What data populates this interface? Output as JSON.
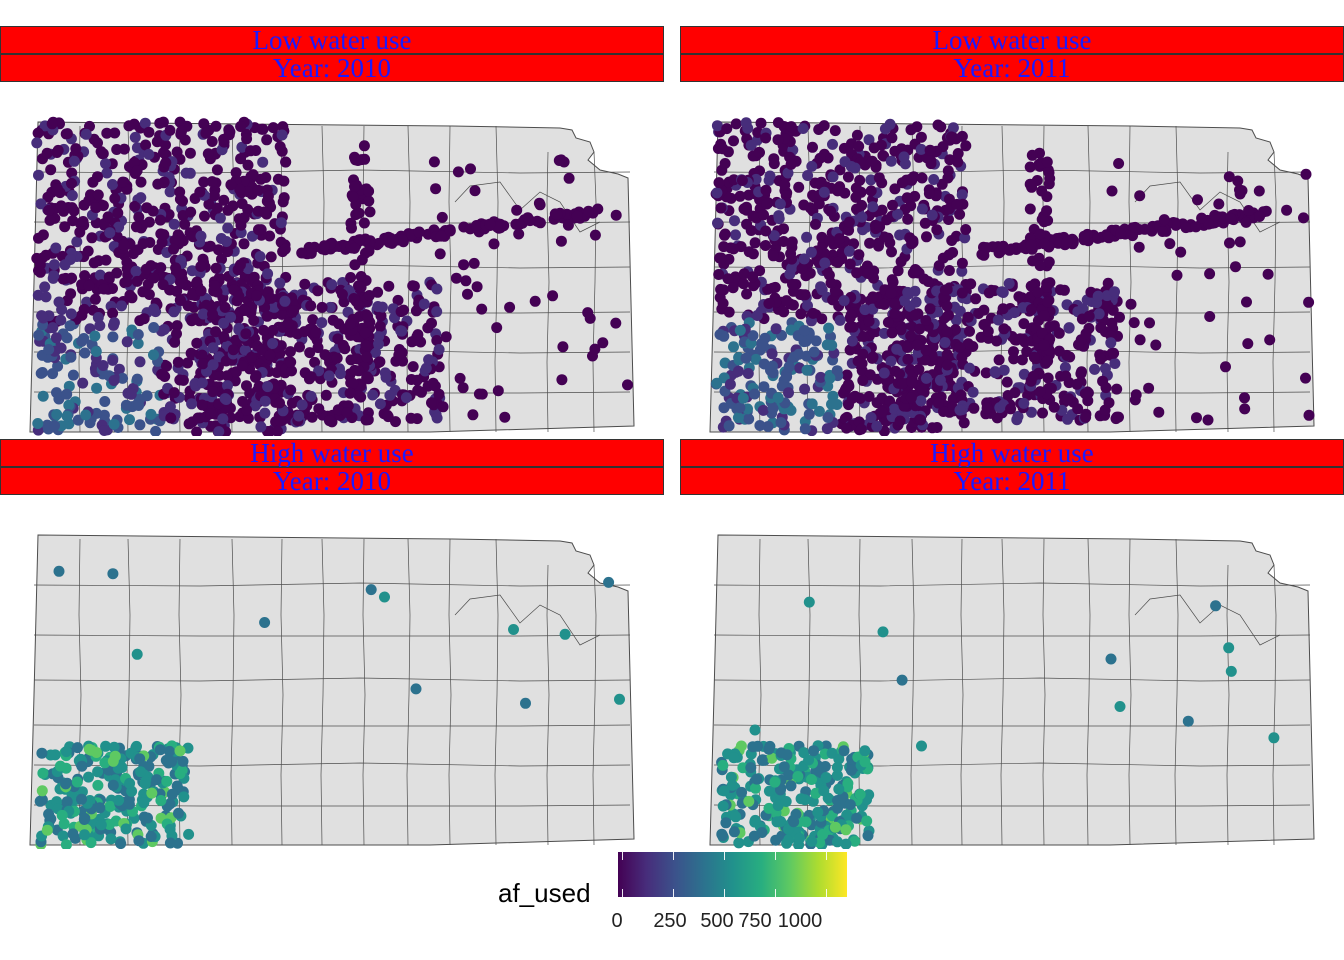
{
  "panels": [
    {
      "id": "p1",
      "strip_top": "Low water use",
      "strip_bottom": "Year:  2010"
    },
    {
      "id": "p2",
      "strip_top": "Low water use",
      "strip_bottom": "Year:  2011"
    },
    {
      "id": "p3",
      "strip_top": "High water use",
      "strip_bottom": "Year:  2010"
    },
    {
      "id": "p4",
      "strip_top": "High water use",
      "strip_bottom": "Year:  2011"
    }
  ],
  "legend": {
    "title": "af_used",
    "ticks": [
      "0",
      "250",
      "500",
      "750",
      "1000"
    ]
  },
  "colors": {
    "strip_fill": "#ff0000",
    "strip_text": "#1a1aff",
    "state_fill": "#e0e0e0",
    "county_line": "#4d4d4d",
    "viridis": [
      "#440154",
      "#472d7b",
      "#3b528b",
      "#2c728e",
      "#21918c",
      "#28ae80",
      "#5ec962",
      "#addc30",
      "#fde725"
    ]
  }
}
